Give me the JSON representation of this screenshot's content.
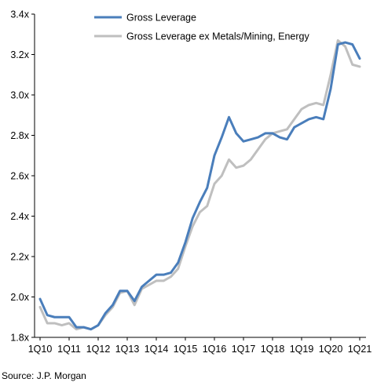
{
  "chart_data": {
    "type": "line",
    "title": "",
    "xlabel": "",
    "ylabel": "",
    "ylim": [
      1.8,
      3.4
    ],
    "yticks": [
      "1.8x",
      "2.0x",
      "2.2x",
      "2.4x",
      "2.6x",
      "2.8x",
      "3.0x",
      "3.2x",
      "3.4x"
    ],
    "ytick_values": [
      1.8,
      2.0,
      2.2,
      2.4,
      2.6,
      2.8,
      3.0,
      3.2,
      3.4
    ],
    "xticks": [
      "1Q10",
      "1Q11",
      "1Q12",
      "1Q13",
      "1Q14",
      "1Q15",
      "1Q16",
      "1Q17",
      "1Q18",
      "1Q19",
      "1Q20",
      "1Q21"
    ],
    "x_periods": [
      "1Q10",
      "2Q10",
      "3Q10",
      "4Q10",
      "1Q11",
      "2Q11",
      "3Q11",
      "4Q11",
      "1Q12",
      "2Q12",
      "3Q12",
      "4Q12",
      "1Q13",
      "2Q13",
      "3Q13",
      "4Q13",
      "1Q14",
      "2Q14",
      "3Q14",
      "4Q14",
      "1Q15",
      "2Q15",
      "3Q15",
      "4Q15",
      "1Q16",
      "2Q16",
      "3Q16",
      "4Q16",
      "1Q17",
      "2Q17",
      "3Q17",
      "4Q17",
      "1Q18",
      "2Q18",
      "3Q18",
      "4Q18",
      "1Q19",
      "2Q19",
      "3Q19",
      "4Q19",
      "1Q20",
      "2Q20",
      "3Q20",
      "4Q20",
      "1Q21"
    ],
    "legend_position": "top-right",
    "grid": false,
    "series": [
      {
        "name": "Gross Leverage",
        "color": "#4a7ebb",
        "values": [
          1.99,
          1.91,
          1.9,
          1.9,
          1.9,
          1.85,
          1.85,
          1.84,
          1.86,
          1.92,
          1.96,
          2.03,
          2.03,
          1.98,
          2.05,
          2.08,
          2.11,
          2.11,
          2.12,
          2.17,
          2.27,
          2.39,
          2.47,
          2.54,
          2.7,
          2.79,
          2.89,
          2.81,
          2.77,
          2.78,
          2.79,
          2.81,
          2.81,
          2.79,
          2.78,
          2.84,
          2.86,
          2.88,
          2.89,
          2.88,
          3.03,
          3.25,
          3.26,
          3.25,
          3.18
        ]
      },
      {
        "name": "Gross Leverage ex Metals/Mining, Energy",
        "color": "#bfbfbf",
        "values": [
          1.95,
          1.87,
          1.87,
          1.86,
          1.87,
          1.84,
          1.85,
          1.84,
          1.86,
          1.91,
          1.95,
          2.02,
          2.03,
          1.96,
          2.04,
          2.06,
          2.08,
          2.08,
          2.1,
          2.14,
          2.25,
          2.35,
          2.42,
          2.45,
          2.56,
          2.6,
          2.68,
          2.64,
          2.65,
          2.68,
          2.73,
          2.78,
          2.81,
          2.82,
          2.83,
          2.88,
          2.93,
          2.95,
          2.96,
          2.95,
          3.1,
          3.27,
          3.24,
          3.15,
          3.14
        ]
      }
    ]
  },
  "footer": {
    "source": "Source: J.P. Morgan"
  }
}
